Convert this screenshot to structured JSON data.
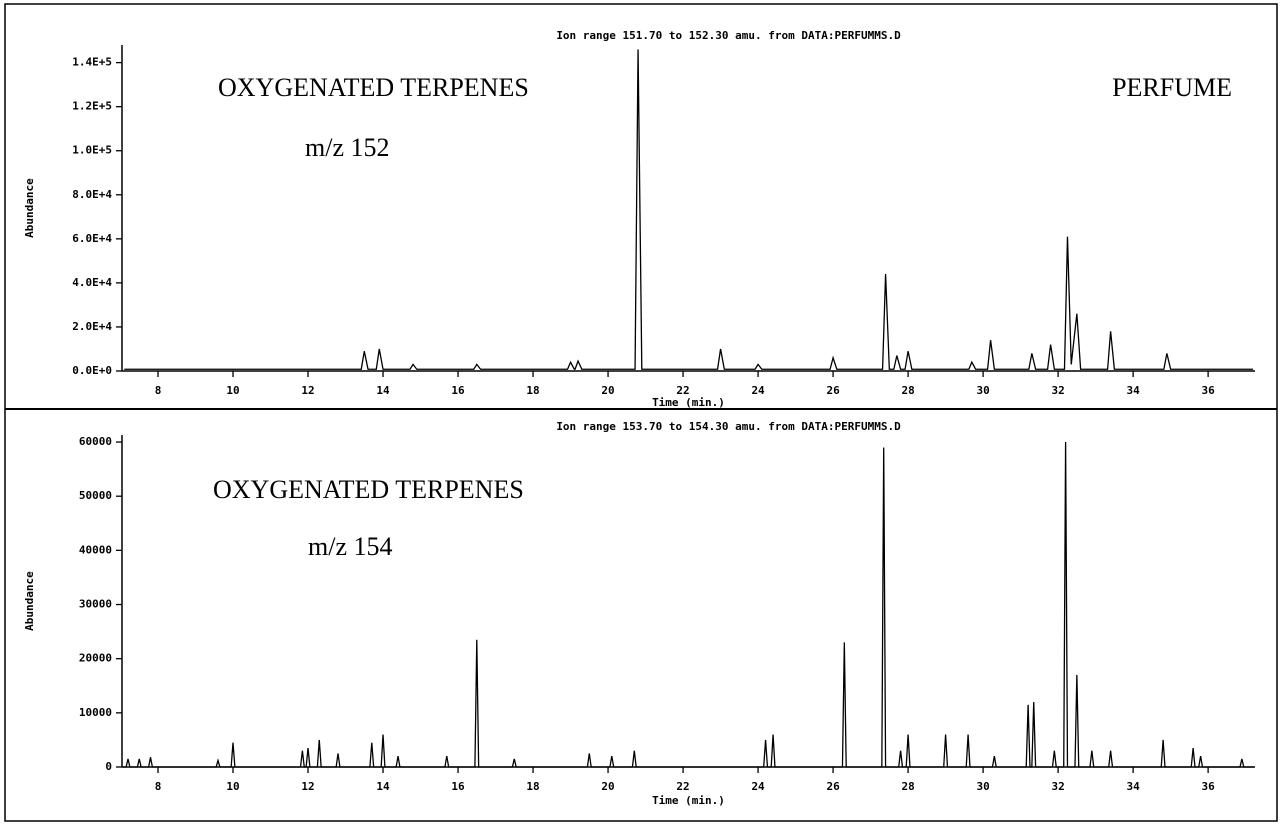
{
  "chart_data": [
    {
      "type": "line",
      "title": "Ion range 151.70 to 152.30 amu. from DATA:PERFUMMS.D",
      "x_label": "Time (min.)",
      "y_label": "Abundance",
      "annotations": [
        "OXYGENATED TERPENES",
        "m/z 152",
        "PERFUME"
      ],
      "color": "#000000",
      "xlim": [
        7.04,
        37.25
      ],
      "xticks": [
        8,
        10,
        12,
        14,
        16,
        18,
        20,
        22,
        24,
        26,
        28,
        30,
        32,
        34,
        36
      ],
      "ylim": [
        0,
        148000
      ],
      "yticks": [
        {
          "value": 0,
          "label": "0.0E+0"
        },
        {
          "value": 20000,
          "label": "2.0E+4"
        },
        {
          "value": 40000,
          "label": "4.0E+4"
        },
        {
          "value": 60000,
          "label": "6.0E+4"
        },
        {
          "value": 80000,
          "label": "8.0E+4"
        },
        {
          "value": 100000,
          "label": "1.0E+5"
        },
        {
          "value": 120000,
          "label": "1.2E+5"
        },
        {
          "value": 140000,
          "label": "1.4E+5"
        }
      ],
      "x": [
        7.1,
        13.42,
        13.5,
        13.6,
        13.82,
        13.9,
        14.0,
        14.72,
        14.8,
        14.9,
        16.42,
        16.5,
        16.6,
        18.92,
        19.0,
        19.1,
        19.12,
        19.2,
        19.3,
        20.72,
        20.8,
        20.9,
        22.92,
        23.0,
        23.1,
        23.92,
        24.0,
        24.1,
        25.92,
        26.0,
        26.1,
        27.32,
        27.4,
        27.5,
        27.62,
        27.7,
        27.8,
        27.92,
        28.0,
        28.1,
        29.62,
        29.7,
        29.8,
        30.12,
        30.2,
        30.3,
        31.22,
        31.3,
        31.4,
        31.72,
        31.8,
        31.9,
        32.17,
        32.25,
        32.35,
        32.5,
        32.6,
        33.32,
        33.4,
        33.5,
        34.82,
        34.9,
        35.0,
        37.2
      ],
      "values": [
        800,
        800,
        9000,
        800,
        800,
        10000,
        800,
        800,
        3000,
        800,
        800,
        3000,
        800,
        800,
        4000,
        800,
        800,
        4500,
        800,
        800,
        146000,
        800,
        800,
        10000,
        800,
        800,
        3000,
        800,
        800,
        6000,
        800,
        800,
        44000,
        800,
        800,
        7000,
        800,
        800,
        9000,
        800,
        800,
        4000,
        800,
        800,
        14000,
        800,
        800,
        8000,
        800,
        800,
        12000,
        800,
        800,
        61000,
        3000,
        26000,
        800,
        800,
        18000,
        800,
        800,
        8000,
        800,
        800
      ]
    },
    {
      "type": "line",
      "title": "Ion range 153.70 to 154.30 amu. from DATA:PERFUMMS.D",
      "x_label": "Time (min.)",
      "y_label": "Abundance",
      "annotations": [
        "OXYGENATED TERPENES",
        "m/z 154"
      ],
      "color": "#000000",
      "xlim": [
        7.04,
        37.25
      ],
      "xticks": [
        8,
        10,
        12,
        14,
        16,
        18,
        20,
        22,
        24,
        26,
        28,
        30,
        32,
        34,
        36
      ],
      "ylim": [
        0,
        61300
      ],
      "yticks": [
        0,
        10000,
        20000,
        30000,
        40000,
        50000,
        60000
      ],
      "x": [
        7.05,
        7.15,
        7.2,
        7.25,
        7.45,
        7.5,
        7.55,
        7.75,
        7.8,
        7.85,
        9.55,
        9.6,
        9.65,
        9.95,
        10.0,
        10.05,
        11.8,
        11.85,
        11.9,
        11.95,
        12.0,
        12.05,
        12.25,
        12.3,
        12.35,
        12.75,
        12.8,
        12.85,
        13.65,
        13.7,
        13.75,
        13.95,
        14.0,
        14.05,
        14.35,
        14.4,
        14.45,
        15.65,
        15.7,
        15.75,
        16.45,
        16.5,
        16.55,
        17.45,
        17.5,
        17.55,
        19.45,
        19.5,
        19.55,
        20.05,
        20.1,
        20.15,
        20.65,
        20.7,
        20.75,
        24.15,
        24.2,
        24.25,
        24.35,
        24.4,
        24.45,
        26.25,
        26.3,
        26.35,
        27.3,
        27.35,
        27.4,
        27.75,
        27.8,
        27.85,
        27.95,
        28.0,
        28.05,
        28.95,
        29.0,
        29.05,
        29.55,
        29.6,
        29.65,
        30.25,
        30.3,
        30.35,
        31.15,
        31.2,
        31.25,
        31.3,
        31.35,
        31.4,
        31.85,
        31.9,
        31.95,
        32.15,
        32.2,
        32.25,
        32.45,
        32.5,
        32.55,
        32.85,
        32.9,
        32.95,
        33.35,
        33.4,
        33.45,
        34.75,
        34.8,
        34.85,
        35.55,
        35.6,
        35.65,
        35.75,
        35.8,
        35.85,
        36.85,
        36.9,
        36.95,
        37.2
      ],
      "values": [
        0,
        0,
        1500,
        0,
        0,
        1500,
        0,
        0,
        1800,
        0,
        0,
        1200,
        0,
        0,
        4500,
        0,
        0,
        3000,
        0,
        0,
        3500,
        0,
        0,
        5000,
        0,
        0,
        2500,
        0,
        0,
        4500,
        0,
        0,
        6000,
        0,
        0,
        2000,
        0,
        0,
        2000,
        0,
        0,
        23500,
        0,
        0,
        1500,
        0,
        0,
        2500,
        0,
        0,
        2000,
        0,
        0,
        3000,
        0,
        0,
        5000,
        0,
        0,
        6000,
        0,
        0,
        23000,
        0,
        0,
        59000,
        0,
        0,
        3000,
        0,
        0,
        6000,
        0,
        0,
        6000,
        0,
        0,
        6000,
        0,
        0,
        2000,
        0,
        0,
        11500,
        0,
        0,
        12000,
        0,
        0,
        3000,
        0,
        0,
        60000,
        0,
        0,
        17000,
        0,
        0,
        3000,
        0,
        0,
        3000,
        0,
        0,
        5000,
        0,
        0,
        3500,
        0,
        0,
        2000,
        0,
        0,
        1500,
        0,
        0
      ]
    }
  ]
}
